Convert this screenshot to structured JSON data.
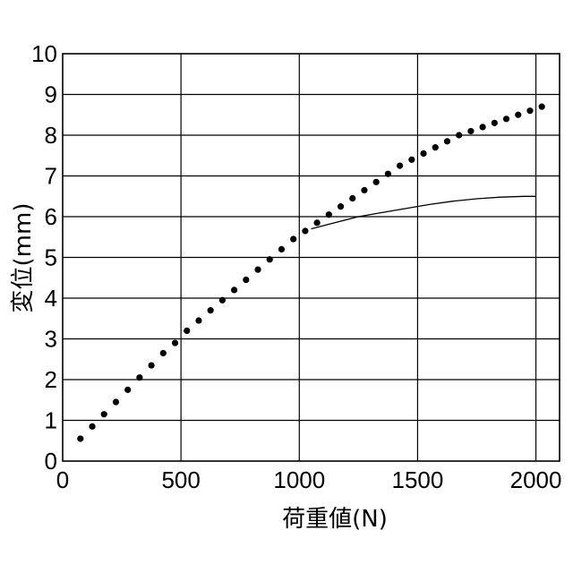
{
  "chart_data": {
    "type": "scatter",
    "title": "",
    "xlabel": "荷重値(N)",
    "ylabel": "変位(mm)",
    "xlim": [
      0,
      2100
    ],
    "ylim": [
      0,
      10
    ],
    "x_ticks": [
      "0",
      "500",
      "1000",
      "1500",
      "2000"
    ],
    "y_ticks": [
      "0",
      "1",
      "2",
      "3",
      "4",
      "5",
      "6",
      "7",
      "8",
      "9",
      "10"
    ],
    "grid": true,
    "series": [
      {
        "style": "dots",
        "x": [
          75,
          125,
          175,
          225,
          275,
          325,
          375,
          425,
          475,
          525,
          575,
          625,
          675,
          725,
          775,
          825,
          875,
          925,
          975,
          1025,
          1075,
          1125,
          1175,
          1225,
          1275,
          1325,
          1375,
          1425,
          1475,
          1525,
          1575,
          1625,
          1675,
          1725,
          1775,
          1825,
          1875,
          1925,
          1975,
          2025
        ],
        "y": [
          0.55,
          0.85,
          1.15,
          1.45,
          1.75,
          2.05,
          2.35,
          2.65,
          2.9,
          3.2,
          3.45,
          3.7,
          3.95,
          4.2,
          4.45,
          4.7,
          4.95,
          5.2,
          5.45,
          5.65,
          5.85,
          6.05,
          6.25,
          6.45,
          6.65,
          6.85,
          7.05,
          7.25,
          7.4,
          7.55,
          7.7,
          7.85,
          8.0,
          8.1,
          8.2,
          8.3,
          8.4,
          8.5,
          8.6,
          8.7
        ]
      },
      {
        "style": "line",
        "x": [
          1050,
          1150,
          1250,
          1350,
          1450,
          1550,
          1650,
          1750,
          1850,
          1950,
          2000
        ],
        "y": [
          5.7,
          5.85,
          6.0,
          6.1,
          6.2,
          6.3,
          6.38,
          6.44,
          6.48,
          6.5,
          6.5
        ]
      }
    ]
  }
}
